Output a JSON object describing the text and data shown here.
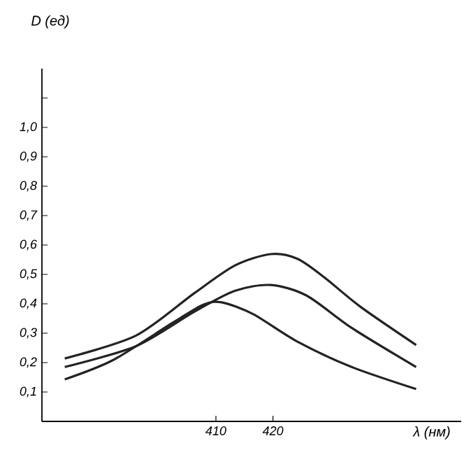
{
  "chart_data": {
    "type": "line",
    "xlabel": "λ (нм)",
    "ylabel": "D (ед)",
    "xlim": [
      379.5,
      453
    ],
    "ylim": [
      0,
      1.2
    ],
    "xticks": [
      410,
      420
    ],
    "yticks": [
      {
        "value": 0.1,
        "label": "0,1"
      },
      {
        "value": 0.2,
        "label": "0,2"
      },
      {
        "value": 0.3,
        "label": "0,3"
      },
      {
        "value": 0.4,
        "label": "0,4"
      },
      {
        "value": 0.5,
        "label": "0,5"
      },
      {
        "value": 0.6,
        "label": "0,6"
      },
      {
        "value": 0.7,
        "label": "0,7"
      },
      {
        "value": 0.8,
        "label": "0,8"
      },
      {
        "value": 0.9,
        "label": "0,9"
      },
      {
        "value": 1.0,
        "label": "1,0"
      },
      {
        "value": 1.1,
        "label": null
      }
    ],
    "grid": false,
    "marker": "none",
    "line_style": "solid",
    "series": [
      {
        "color": "#222222",
        "x": [
          383.5,
          396,
          406.2,
          413.3,
          419.6,
          424.3,
          429,
          435.4,
          445.1
        ],
        "values": [
          0.214,
          0.292,
          0.436,
          0.53,
          0.569,
          0.553,
          0.49,
          0.389,
          0.26
        ]
      },
      {
        "color": "#222222",
        "x": [
          383.5,
          396,
          406.2,
          413.3,
          419.6,
          425.9,
          433.8,
          445.1
        ],
        "values": [
          0.185,
          0.256,
          0.373,
          0.444,
          0.464,
          0.428,
          0.318,
          0.185
        ]
      },
      {
        "color": "#222222",
        "x": [
          383.5,
          392,
          402.3,
          407.8,
          411,
          416.5,
          424.3,
          433.8,
          445.1
        ],
        "values": [
          0.143,
          0.209,
          0.334,
          0.397,
          0.405,
          0.365,
          0.271,
          0.185,
          0.11
        ]
      }
    ]
  }
}
